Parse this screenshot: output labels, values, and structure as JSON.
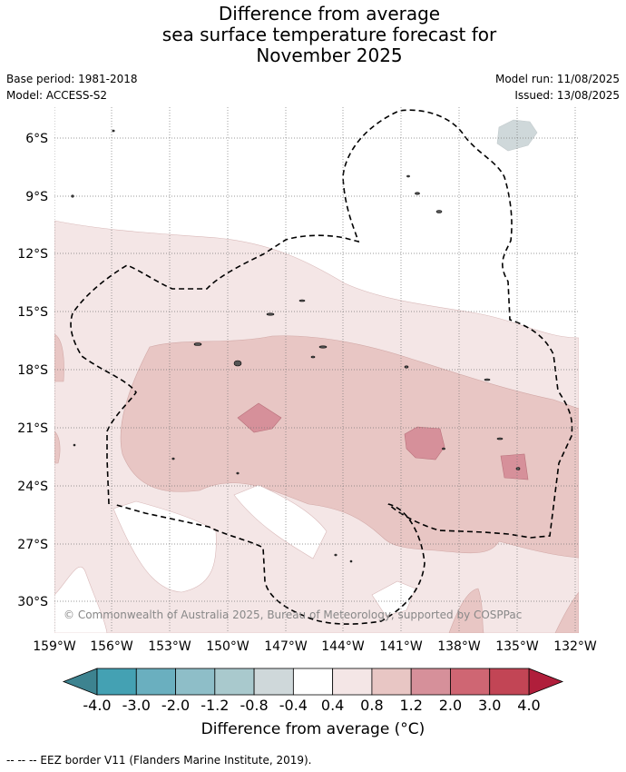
{
  "title_lines": [
    "Difference from average",
    "sea surface temperature forecast for",
    "November 2025"
  ],
  "meta": {
    "base_period": "Base period: 1981-2018",
    "model": "Model: ACCESS-S2",
    "model_run": "Model run: 11/08/2025",
    "issued": "Issued: 13/08/2025"
  },
  "axes": {
    "lon_labels": [
      "159°W",
      "156°W",
      "153°W",
      "150°W",
      "147°W",
      "144°W",
      "141°W",
      "138°W",
      "135°W",
      "132°W"
    ],
    "lat_labels": [
      "6°S",
      "9°S",
      "12°S",
      "15°S",
      "18°S",
      "21°S",
      "24°S",
      "27°S",
      "30°S"
    ],
    "grid": true
  },
  "colorbar": {
    "ticks": [
      "-4.0",
      "-3.0",
      "-2.0",
      "-1.2",
      "-0.8",
      "-0.4",
      "0.4",
      "0.8",
      "1.2",
      "2.0",
      "3.0",
      "4.0"
    ],
    "colors": [
      "#44a1b3",
      "#6aafbf",
      "#8ebec8",
      "#a9c9cd",
      "#cfd8da",
      "#ffffff",
      "#f4e6e6",
      "#e8c6c4",
      "#d6909a",
      "#cf6673",
      "#c24555"
    ],
    "under_color": "#3d8390",
    "over_color": "#b01e3b",
    "label": "Difference from average (°C)"
  },
  "copyright": "© Commonwealth of Australia 2025, Bureau of Meteorology, supported by COSPPac",
  "legend_note": "-- -- -- EEZ border V11 (Flanders Marine Institute, 2019)."
}
